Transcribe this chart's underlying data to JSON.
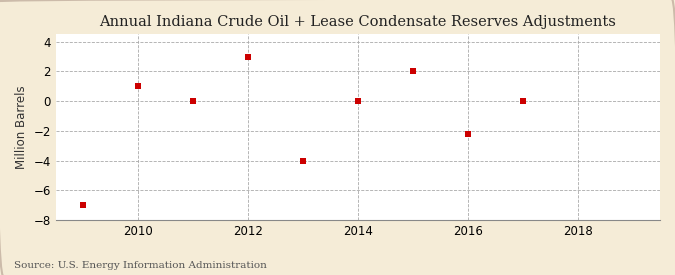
{
  "years": [
    2009,
    2010,
    2011,
    2012,
    2013,
    2014,
    2015,
    2016,
    2017
  ],
  "values": [
    -7.0,
    1.0,
    0.0,
    3.0,
    -4.0,
    0.0,
    2.0,
    -2.2,
    0.0
  ],
  "title": "Annual Indiana Crude Oil + Lease Condensate Reserves Adjustments",
  "ylabel": "Million Barrels",
  "source": "Source: U.S. Energy Information Administration",
  "marker_color": "#cc0000",
  "marker": "s",
  "marker_size": 4,
  "bg_color": "#f5ecd7",
  "plot_bg_color": "#ffffff",
  "grid_color": "#aaaaaa",
  "xlim": [
    2008.5,
    2019.5
  ],
  "ylim": [
    -8,
    4.5
  ],
  "yticks": [
    -8,
    -6,
    -4,
    -2,
    0,
    2,
    4
  ],
  "xticks": [
    2010,
    2012,
    2014,
    2016,
    2018
  ],
  "title_fontsize": 10.5,
  "label_fontsize": 8.5,
  "tick_fontsize": 8.5,
  "source_fontsize": 7.5,
  "spine_color": "#888888"
}
